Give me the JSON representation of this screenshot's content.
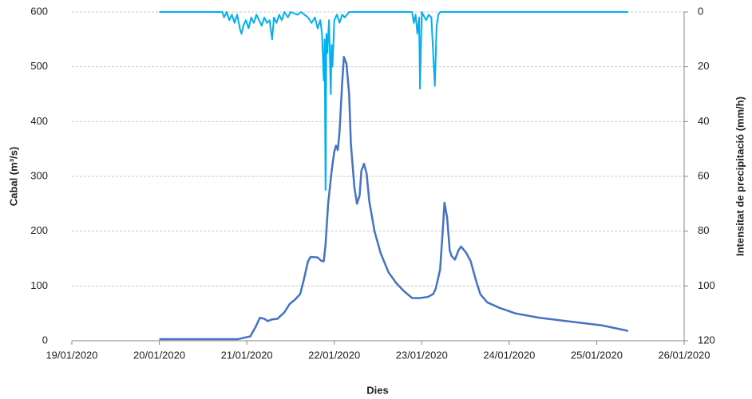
{
  "chart_data": {
    "type": "line",
    "x_label": "Dies",
    "y_label": "Cabal (m³/s)",
    "y2_label": "Intensitat de precipitació (mm/h)",
    "xlim": [
      0,
      7
    ],
    "xticks": [
      {
        "value": 0,
        "label": "19/01/2020"
      },
      {
        "value": 1,
        "label": "20/01/2020"
      },
      {
        "value": 2,
        "label": "21/01/2020"
      },
      {
        "value": 3,
        "label": "22/01/2020"
      },
      {
        "value": 4,
        "label": "23/01/2020"
      },
      {
        "value": 5,
        "label": "24/01/2020"
      },
      {
        "value": 6,
        "label": "25/01/2020"
      },
      {
        "value": 7,
        "label": "26/01/2020"
      }
    ],
    "ylim": [
      0,
      600
    ],
    "yticks": [
      0,
      100,
      200,
      300,
      400,
      500,
      600
    ],
    "y2lim": [
      120,
      0
    ],
    "y2ticks": [
      0,
      20,
      40,
      60,
      80,
      100,
      120
    ],
    "grid": true,
    "series": [
      {
        "color": "#00b0f0",
        "axis": "y2",
        "x": [
          1.0,
          1.72,
          1.74,
          1.77,
          1.8,
          1.83,
          1.86,
          1.89,
          1.92,
          1.94,
          1.96,
          1.99,
          2.02,
          2.05,
          2.08,
          2.11,
          2.14,
          2.17,
          2.2,
          2.23,
          2.26,
          2.29,
          2.31,
          2.34,
          2.37,
          2.4,
          2.43,
          2.47,
          2.5,
          2.58,
          2.62,
          2.7,
          2.74,
          2.78,
          2.81,
          2.84,
          2.86,
          2.88,
          2.89,
          2.9,
          2.91,
          2.92,
          2.94,
          2.96,
          2.97,
          2.98,
          3.0,
          3.03,
          3.06,
          3.09,
          3.12,
          3.17,
          3.89,
          3.91,
          3.93,
          3.95,
          3.97,
          3.98,
          4.0,
          4.05,
          4.08,
          4.11,
          4.15,
          4.17,
          4.19,
          4.21,
          6.36
        ],
        "values": [
          0,
          0,
          2,
          0,
          3,
          1,
          4,
          1,
          6,
          8,
          5,
          3,
          6,
          2,
          4,
          1,
          3,
          5,
          2,
          4,
          3,
          10,
          2,
          4,
          1,
          3,
          0,
          2,
          0,
          1,
          0,
          2,
          4,
          2,
          6,
          3,
          8,
          25,
          10,
          65,
          8,
          15,
          3,
          30,
          12,
          20,
          3,
          1,
          4,
          1,
          2,
          0,
          0,
          4,
          1,
          8,
          2,
          28,
          0,
          3,
          1,
          2,
          27,
          5,
          1,
          0,
          0
        ]
      },
      {
        "color": "#4472c4",
        "axis": "y",
        "x": [
          1.0,
          1.9,
          2.04,
          2.1,
          2.15,
          2.2,
          2.24,
          2.29,
          2.35,
          2.43,
          2.49,
          2.55,
          2.61,
          2.65,
          2.7,
          2.73,
          2.81,
          2.85,
          2.88,
          2.9,
          2.93,
          2.97,
          3.0,
          3.02,
          3.04,
          3.06,
          3.09,
          3.11,
          3.14,
          3.17,
          3.19,
          3.23,
          3.26,
          3.29,
          3.31,
          3.34,
          3.37,
          3.4,
          3.46,
          3.53,
          3.62,
          3.71,
          3.8,
          3.89,
          3.98,
          4.07,
          4.13,
          4.16,
          4.21,
          4.24,
          4.26,
          4.29,
          4.32,
          4.34,
          4.38,
          4.42,
          4.45,
          4.51,
          4.56,
          4.62,
          4.67,
          4.75,
          4.89,
          5.07,
          5.34,
          5.7,
          6.06,
          6.36
        ],
        "values": [
          3,
          3,
          8,
          25,
          42,
          40,
          36,
          39,
          40,
          52,
          67,
          75,
          85,
          110,
          145,
          153,
          152,
          146,
          145,
          175,
          250,
          310,
          345,
          356,
          348,
          380,
          470,
          518,
          505,
          450,
          360,
          280,
          250,
          265,
          310,
          323,
          305,
          255,
          200,
          160,
          125,
          105,
          90,
          78,
          78,
          80,
          85,
          95,
          130,
          200,
          252,
          225,
          165,
          155,
          148,
          165,
          172,
          160,
          145,
          110,
          85,
          70,
          60,
          50,
          42,
          35,
          28,
          18
        ]
      }
    ]
  }
}
